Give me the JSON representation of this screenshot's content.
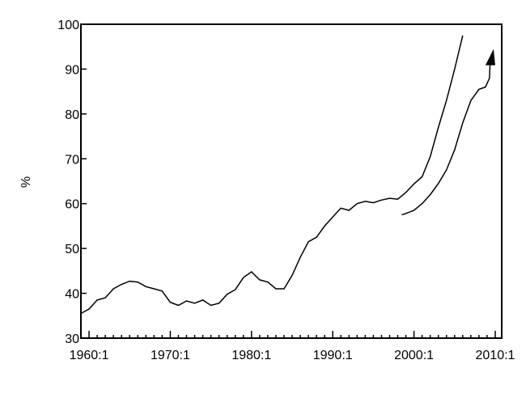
{
  "chart_data": {
    "type": "line",
    "title": "",
    "xlabel": "",
    "ylabel": "%",
    "xlim": [
      1959,
      2010.8
    ],
    "ylim": [
      30,
      100
    ],
    "x_ticks": [
      1960,
      1970,
      1980,
      1990,
      2000,
      2010
    ],
    "x_tick_labels": [
      "1960:1",
      "1970:1",
      "1980:1",
      "1990:1",
      "2000:1",
      "2010:1"
    ],
    "y_ticks": [
      30,
      40,
      50,
      60,
      70,
      80,
      90,
      100
    ],
    "y_tick_labels": [
      "30",
      "40",
      "50",
      "60",
      "70",
      "80",
      "90",
      "100"
    ],
    "grid": false,
    "colors": {
      "line": "#000000",
      "background": "#ffffff"
    },
    "series": [
      {
        "x": [
          1959,
          1960,
          1961,
          1962,
          1963,
          1964,
          1965,
          1966,
          1967,
          1968,
          1969,
          1970,
          1971,
          1972,
          1973,
          1974,
          1975,
          1976,
          1977,
          1978,
          1979,
          1980,
          1981,
          1982,
          1983,
          1984,
          1985,
          1986,
          1987,
          1988,
          1989,
          1990,
          1991,
          1992,
          1993,
          1994,
          1995,
          1996,
          1997,
          1998,
          1999,
          2000,
          2001,
          2002,
          2003,
          2004,
          2005,
          2006
        ],
        "y": [
          35.5,
          36.5,
          38.5,
          39,
          41,
          42,
          42.7,
          42.5,
          41.5,
          41,
          40.5,
          38,
          37.3,
          38.3,
          37.8,
          38.5,
          37.3,
          37.8,
          39.8,
          40.8,
          43.5,
          44.8,
          43,
          42.5,
          41,
          41,
          44,
          48,
          51.5,
          52.5,
          55,
          57,
          59,
          58.5,
          60,
          60.5,
          60.2,
          60.8,
          61.2,
          61,
          62.5,
          64.4,
          66,
          70.5,
          77,
          83,
          90,
          97.5
        ]
      },
      {
        "x": [
          1998.5,
          1999,
          2000,
          2001,
          2002,
          2003,
          2004,
          2005,
          2006,
          2007,
          2008,
          2008.8,
          2009.3,
          2009.4
        ],
        "y": [
          57.5,
          57.8,
          58.5,
          60,
          62,
          64.5,
          67.5,
          72,
          78,
          83,
          85.5,
          86,
          88,
          92.5
        ],
        "end_marker": "arrow"
      }
    ]
  }
}
